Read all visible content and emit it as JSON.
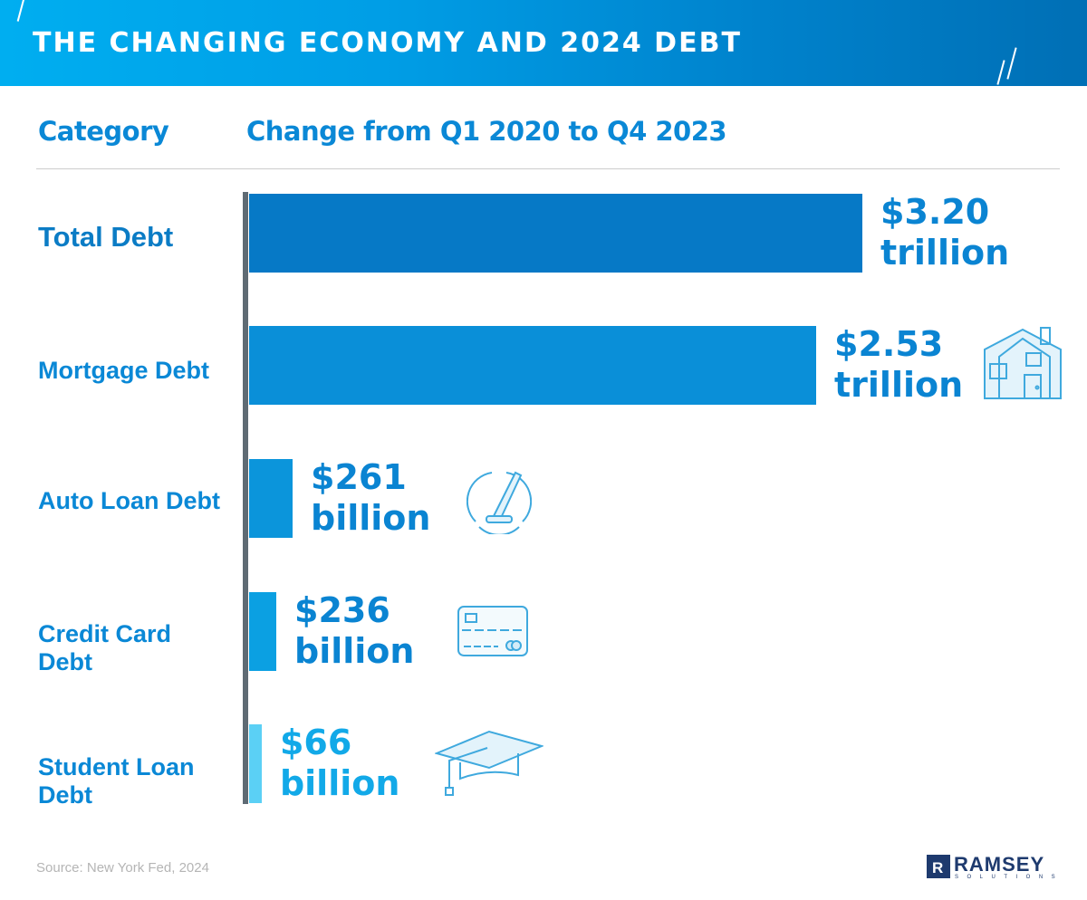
{
  "title": "THE CHANGING ECONOMY AND 2024 DEBT",
  "chart_data": {
    "type": "bar",
    "orientation": "horizontal",
    "column_headers": [
      "Category",
      "Change from Q1 2020 to Q4 2023"
    ],
    "categories": [
      "Total Debt",
      "Mortgage Debt",
      "Auto Loan Debt",
      "Credit Card Debt",
      "Student Loan Debt"
    ],
    "values_billion_usd": [
      3200,
      2530,
      261,
      236,
      66
    ],
    "value_labels": [
      [
        "$3.20",
        "trillion"
      ],
      [
        "$2.53",
        "trillion"
      ],
      [
        "$261",
        "billion"
      ],
      [
        "$236",
        "billion"
      ],
      [
        "$66",
        "billion"
      ]
    ],
    "colors": [
      "#0679c6",
      "#0a8fd8",
      "#0b95db",
      "#0ba0e2",
      "#5bd0f5"
    ],
    "icons": [
      null,
      "house-icon",
      "speedometer-icon",
      "credit-card-icon",
      "graduation-cap-icon"
    ]
  },
  "source": "Source: New York Fed, 2024",
  "logo": {
    "name": "RAMSEY",
    "sub": "SOLUTIONS"
  }
}
